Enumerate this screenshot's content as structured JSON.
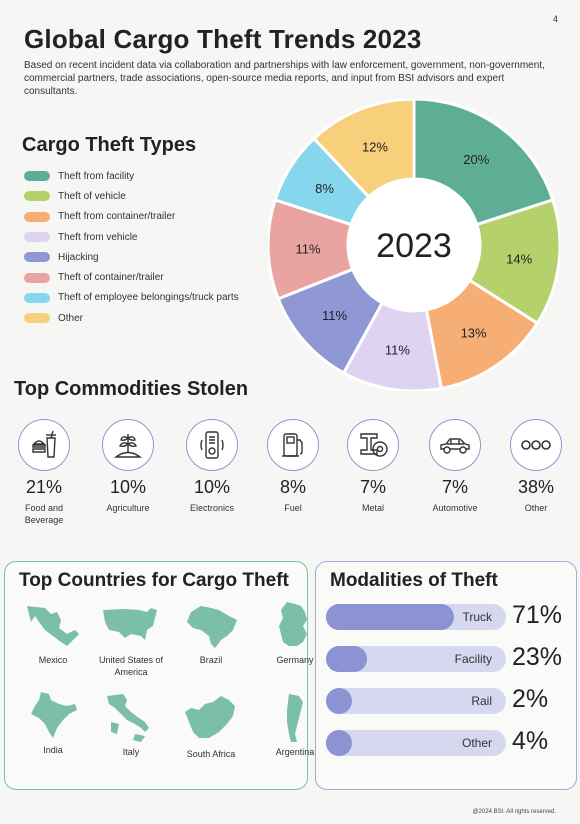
{
  "page_number": "4",
  "title": "Global Cargo Theft Trends 2023",
  "intro": "Based on recent incident data via collaboration and partnerships with law enforcement, government, non-government, commercial partners, trade associations, open-source media reports, and input from BSI advisors and expert consultants.",
  "types_section": {
    "title": "Cargo Theft Types"
  },
  "chart_data": {
    "type": "pie",
    "title": "Cargo Theft Types",
    "center_label": "2023",
    "categories": [
      "Theft from facility",
      "Theft of vehicle",
      "Theft from container/trailer",
      "Theft from vehicle",
      "Hijacking",
      "Theft of container/trailer",
      "Theft of employee belongings/truck parts",
      "Other"
    ],
    "values": [
      20,
      14,
      13,
      11,
      11,
      11,
      8,
      12
    ],
    "labels": [
      "20%",
      "14%",
      "13%",
      "11%",
      "11%",
      "11%",
      "8%",
      "12%"
    ],
    "colors": [
      "#5eae96",
      "#b5d16b",
      "#f7ae74",
      "#dfd3f2",
      "#8f97d4",
      "#e9a3a1",
      "#86d6ee",
      "#f8cf7a"
    ],
    "legend_position": "left",
    "donut": true
  },
  "commodities_section": {
    "title": "Top Commodities Stolen",
    "items": [
      {
        "label": "Food and Beverage",
        "value": "21%",
        "icon": "food-beverage-icon"
      },
      {
        "label": "Agriculture",
        "value": "10%",
        "icon": "agriculture-icon"
      },
      {
        "label": "Electronics",
        "value": "10%",
        "icon": "electronics-icon"
      },
      {
        "label": "Fuel",
        "value": "8%",
        "icon": "fuel-icon"
      },
      {
        "label": "Metal",
        "value": "7%",
        "icon": "metal-icon"
      },
      {
        "label": "Automotive",
        "value": "7%",
        "icon": "automotive-icon"
      },
      {
        "label": "Other",
        "value": "38%",
        "icon": "other-icon"
      }
    ]
  },
  "countries_section": {
    "title": "Top Countries for Cargo Theft",
    "map_color": "#7cbfa9",
    "countries": [
      "Mexico",
      "United States of America",
      "Brazil",
      "Germany",
      "India",
      "Italy",
      "South Africa",
      "Argentina"
    ]
  },
  "modalities_section": {
    "title": "Modalities of Theft",
    "items": [
      {
        "label": "Truck",
        "value": "71%",
        "fraction": 0.71
      },
      {
        "label": "Facility",
        "value": "23%",
        "fraction": 0.23
      },
      {
        "label": "Rail",
        "value": "2%",
        "fraction": 0.02
      },
      {
        "label": "Other",
        "value": "4%",
        "fraction": 0.04
      }
    ]
  },
  "footer": "@2024 BSI. All rights reserved."
}
